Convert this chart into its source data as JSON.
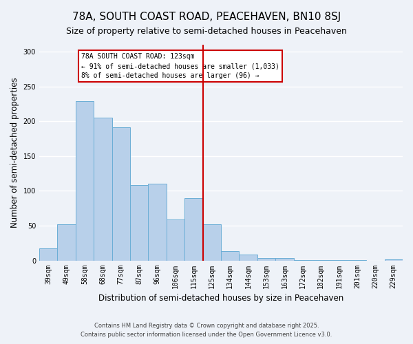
{
  "title": "78A, SOUTH COAST ROAD, PEACEHAVEN, BN10 8SJ",
  "subtitle": "Size of property relative to semi-detached houses in Peacehaven",
  "xlabel": "Distribution of semi-detached houses by size in Peacehaven",
  "ylabel": "Number of semi-detached properties",
  "categories": [
    "39sqm",
    "49sqm",
    "58sqm",
    "68sqm",
    "77sqm",
    "87sqm",
    "96sqm",
    "106sqm",
    "115sqm",
    "125sqm",
    "134sqm",
    "144sqm",
    "153sqm",
    "163sqm",
    "172sqm",
    "182sqm",
    "191sqm",
    "201sqm",
    "220sqm",
    "229sqm"
  ],
  "values": [
    17,
    52,
    229,
    205,
    191,
    108,
    110,
    59,
    90,
    52,
    13,
    8,
    4,
    4,
    1,
    1,
    1,
    1,
    0,
    2
  ],
  "bar_color": "#b8d0ea",
  "bar_edge_color": "#6baed6",
  "vline_x_index": 9,
  "vline_color": "#cc0000",
  "annotation_title": "78A SOUTH COAST ROAD: 123sqm",
  "annotation_line1": "← 91% of semi-detached houses are smaller (1,033)",
  "annotation_line2": "8% of semi-detached houses are larger (96) →",
  "annotation_box_color": "#cc0000",
  "ylim": [
    0,
    310
  ],
  "yticks": [
    0,
    50,
    100,
    150,
    200,
    250,
    300
  ],
  "footer1": "Contains HM Land Registry data © Crown copyright and database right 2025.",
  "footer2": "Contains public sector information licensed under the Open Government Licence v3.0.",
  "bg_color": "#eef2f8",
  "grid_color": "#ffffff",
  "title_fontsize": 11,
  "subtitle_fontsize": 9,
  "axis_label_fontsize": 8.5,
  "tick_fontsize": 7,
  "footer_fontsize": 6,
  "annotation_fontsize": 7
}
